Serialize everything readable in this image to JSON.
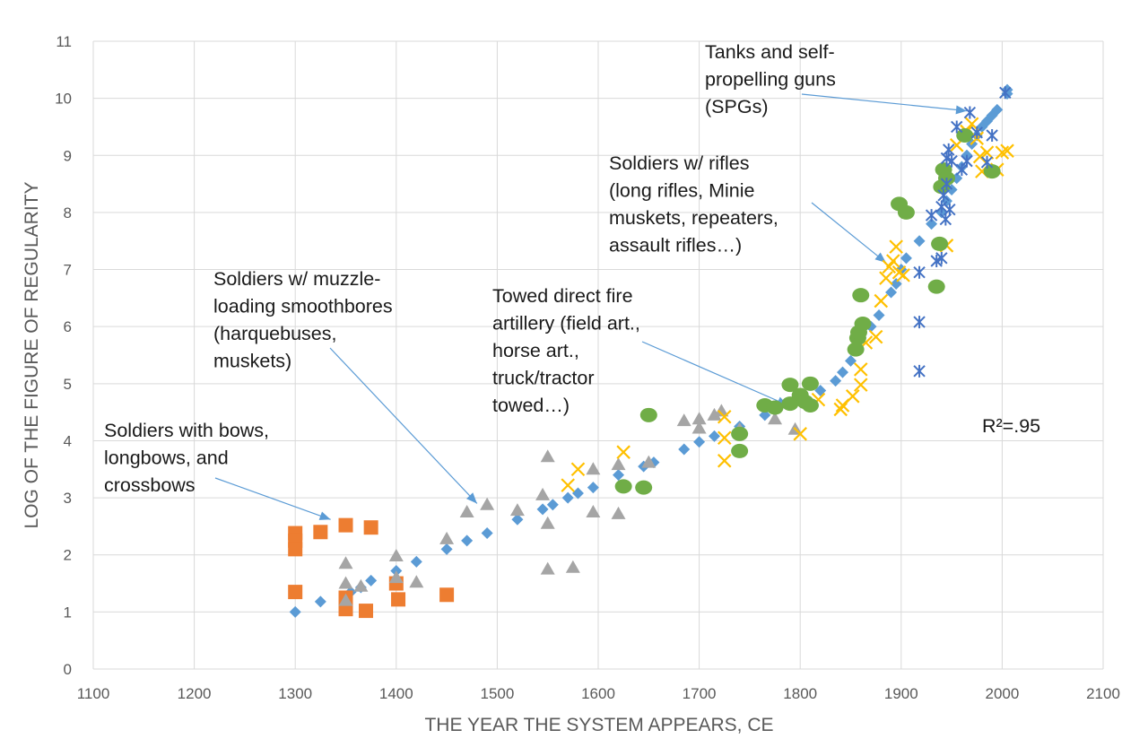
{
  "chart_data": {
    "type": "scatter",
    "title": "",
    "xlabel": "THE YEAR THE SYSTEM APPEARS, CE",
    "ylabel": "LOG OF THE FIGURE OF REGULARITY",
    "xlim": [
      1100,
      2100
    ],
    "ylim": [
      0,
      11
    ],
    "x_ticks": [
      "1100",
      "1200",
      "1300",
      "1400",
      "1500",
      "1600",
      "1700",
      "1800",
      "1900",
      "2000",
      "2100"
    ],
    "y_ticks": [
      "0",
      "1",
      "2",
      "3",
      "4",
      "5",
      "6",
      "7",
      "8",
      "9",
      "10",
      "11"
    ],
    "grid": true,
    "legend": "none",
    "r_squared_label": "R²=.95",
    "colors": {
      "fit_diamonds": "#5b9bd5",
      "bows": "#ed7d31",
      "smoothbores": "#a5a5a5",
      "towed_artillery": "#ffc000",
      "rifles": "#70ad47",
      "tanks_spgs": "#4472c4",
      "annotation_arrow": "#5b9bd5"
    },
    "annotations": [
      {
        "id": "bows",
        "lines": [
          "Soldiers with bows,",
          "longbows, and",
          "crossbows"
        ],
        "arrow_to": [
          1335,
          2.62
        ]
      },
      {
        "id": "smoothbores",
        "lines": [
          "Soldiers w/ muzzle-",
          "loading smoothbores",
          "(harquebuses,",
          "muskets)"
        ],
        "arrow_to": [
          1480,
          2.9
        ]
      },
      {
        "id": "towed",
        "lines": [
          "Towed direct fire",
          "artillery (field art.,",
          "horse art.,",
          "truck/tractor",
          "towed…)"
        ],
        "arrow_to": [
          1788,
          4.62
        ]
      },
      {
        "id": "rifles",
        "lines": [
          "Soldiers w/ rifles",
          "(long rifles, Minie",
          "muskets, repeaters,",
          "assault rifles…)"
        ],
        "arrow_to": [
          1885,
          7.12
        ]
      },
      {
        "id": "tanks",
        "lines": [
          "Tanks and self-",
          "propelling guns",
          "(SPGs)"
        ],
        "arrow_to": [
          1965,
          9.78
        ]
      }
    ],
    "series": [
      {
        "marker": "diamond",
        "color": "#5b9bd5",
        "points": [
          [
            1300,
            1.0
          ],
          [
            1325,
            1.18
          ],
          [
            1355,
            1.35
          ],
          [
            1365,
            1.43
          ],
          [
            1375,
            1.55
          ],
          [
            1400,
            1.72
          ],
          [
            1420,
            1.88
          ],
          [
            1450,
            2.1
          ],
          [
            1470,
            2.25
          ],
          [
            1490,
            2.38
          ],
          [
            1520,
            2.62
          ],
          [
            1545,
            2.8
          ],
          [
            1555,
            2.88
          ],
          [
            1570,
            3.0
          ],
          [
            1580,
            3.08
          ],
          [
            1595,
            3.18
          ],
          [
            1620,
            3.4
          ],
          [
            1645,
            3.55
          ],
          [
            1655,
            3.62
          ],
          [
            1685,
            3.85
          ],
          [
            1700,
            3.98
          ],
          [
            1715,
            4.08
          ],
          [
            1740,
            4.25
          ],
          [
            1765,
            4.45
          ],
          [
            1785,
            4.65
          ],
          [
            1805,
            4.72
          ],
          [
            1820,
            4.88
          ],
          [
            1835,
            5.05
          ],
          [
            1842,
            5.2
          ],
          [
            1850,
            5.4
          ],
          [
            1860,
            5.8
          ],
          [
            1870,
            6.0
          ],
          [
            1878,
            6.2
          ],
          [
            1890,
            6.6
          ],
          [
            1895,
            6.75
          ],
          [
            1900,
            7.0
          ],
          [
            1905,
            7.2
          ],
          [
            1918,
            7.5
          ],
          [
            1930,
            7.8
          ],
          [
            1940,
            8.0
          ],
          [
            1945,
            8.2
          ],
          [
            1950,
            8.4
          ],
          [
            1955,
            8.6
          ],
          [
            1960,
            8.8
          ],
          [
            1965,
            9.0
          ],
          [
            1970,
            9.2
          ],
          [
            1975,
            9.35
          ],
          [
            1980,
            9.5
          ],
          [
            1985,
            9.6
          ],
          [
            1990,
            9.7
          ],
          [
            1995,
            9.8
          ],
          [
            2005,
            10.15
          ],
          [
            2005,
            10.08
          ]
        ]
      },
      {
        "marker": "square",
        "color": "#ed7d31",
        "points": [
          [
            1300,
            2.38
          ],
          [
            1300,
            2.25
          ],
          [
            1300,
            2.1
          ],
          [
            1300,
            1.35
          ],
          [
            1325,
            2.4
          ],
          [
            1350,
            2.52
          ],
          [
            1350,
            1.25
          ],
          [
            1350,
            1.18
          ],
          [
            1350,
            1.05
          ],
          [
            1370,
            1.02
          ],
          [
            1375,
            2.48
          ],
          [
            1400,
            1.5
          ],
          [
            1402,
            1.22
          ],
          [
            1450,
            1.3
          ]
        ]
      },
      {
        "marker": "triangle",
        "color": "#a5a5a5",
        "points": [
          [
            1350,
            1.85
          ],
          [
            1350,
            1.5
          ],
          [
            1350,
            1.2
          ],
          [
            1365,
            1.45
          ],
          [
            1400,
            1.98
          ],
          [
            1400,
            1.6
          ],
          [
            1420,
            1.52
          ],
          [
            1450,
            2.28
          ],
          [
            1470,
            2.75
          ],
          [
            1490,
            2.88
          ],
          [
            1520,
            2.78
          ],
          [
            1545,
            3.05
          ],
          [
            1550,
            3.72
          ],
          [
            1550,
            2.55
          ],
          [
            1550,
            1.75
          ],
          [
            1575,
            1.78
          ],
          [
            1595,
            3.5
          ],
          [
            1595,
            2.75
          ],
          [
            1620,
            3.58
          ],
          [
            1620,
            2.72
          ],
          [
            1650,
            3.62
          ],
          [
            1685,
            4.35
          ],
          [
            1700,
            4.38
          ],
          [
            1700,
            4.22
          ],
          [
            1715,
            4.45
          ],
          [
            1722,
            4.52
          ],
          [
            1740,
            4.2
          ],
          [
            1775,
            4.38
          ],
          [
            1795,
            4.2
          ]
        ]
      },
      {
        "marker": "x",
        "color": "#ffc000",
        "points": [
          [
            1570,
            3.22
          ],
          [
            1580,
            3.5
          ],
          [
            1625,
            3.8
          ],
          [
            1725,
            4.42
          ],
          [
            1725,
            4.05
          ],
          [
            1725,
            3.65
          ],
          [
            1800,
            4.12
          ],
          [
            1818,
            4.72
          ],
          [
            1840,
            4.55
          ],
          [
            1842,
            4.62
          ],
          [
            1852,
            4.78
          ],
          [
            1860,
            4.98
          ],
          [
            1860,
            5.25
          ],
          [
            1865,
            5.72
          ],
          [
            1875,
            5.82
          ],
          [
            1880,
            6.45
          ],
          [
            1885,
            6.85
          ],
          [
            1888,
            7.05
          ],
          [
            1892,
            7.15
          ],
          [
            1895,
            7.4
          ],
          [
            1898,
            6.95
          ],
          [
            1902,
            6.9
          ],
          [
            1945,
            7.42
          ],
          [
            1955,
            9.18
          ],
          [
            1965,
            9.42
          ],
          [
            1970,
            9.55
          ],
          [
            1975,
            9.3
          ],
          [
            1978,
            8.98
          ],
          [
            1980,
            8.72
          ],
          [
            1985,
            9.05
          ],
          [
            1995,
            8.75
          ],
          [
            2000,
            9.05
          ],
          [
            2005,
            9.08
          ]
        ]
      },
      {
        "marker": "circle",
        "color": "#70ad47",
        "points": [
          [
            1625,
            3.2
          ],
          [
            1645,
            3.18
          ],
          [
            1650,
            4.45
          ],
          [
            1740,
            4.12
          ],
          [
            1740,
            3.82
          ],
          [
            1765,
            4.62
          ],
          [
            1775,
            4.58
          ],
          [
            1790,
            4.98
          ],
          [
            1790,
            4.65
          ],
          [
            1800,
            4.8
          ],
          [
            1805,
            4.68
          ],
          [
            1810,
            5.0
          ],
          [
            1810,
            4.62
          ],
          [
            1855,
            5.6
          ],
          [
            1857,
            5.8
          ],
          [
            1858,
            5.9
          ],
          [
            1860,
            6.55
          ],
          [
            1862,
            6.05
          ],
          [
            1898,
            8.15
          ],
          [
            1905,
            8.0
          ],
          [
            1935,
            6.7
          ],
          [
            1938,
            7.45
          ],
          [
            1940,
            8.45
          ],
          [
            1942,
            8.75
          ],
          [
            1945,
            8.6
          ],
          [
            1963,
            9.35
          ],
          [
            1990,
            8.72
          ]
        ]
      },
      {
        "marker": "asterisk",
        "color": "#4472c4",
        "points": [
          [
            1918,
            5.22
          ],
          [
            1918,
            6.08
          ],
          [
            1918,
            6.95
          ],
          [
            1930,
            7.95
          ],
          [
            1935,
            7.15
          ],
          [
            1940,
            7.2
          ],
          [
            1940,
            8.1
          ],
          [
            1942,
            8.3
          ],
          [
            1944,
            7.88
          ],
          [
            1945,
            8.5
          ],
          [
            1945,
            8.95
          ],
          [
            1947,
            9.1
          ],
          [
            1948,
            8.05
          ],
          [
            1950,
            8.9
          ],
          [
            1955,
            9.5
          ],
          [
            1960,
            8.75
          ],
          [
            1965,
            8.9
          ],
          [
            1968,
            9.75
          ],
          [
            1975,
            9.4
          ],
          [
            1985,
            8.88
          ],
          [
            1990,
            9.35
          ],
          [
            2003,
            10.1
          ]
        ]
      }
    ]
  }
}
